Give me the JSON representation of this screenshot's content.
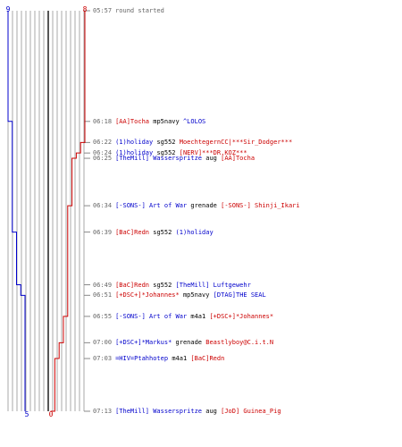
{
  "score_top": {
    "blue": "9",
    "red": "8"
  },
  "score_bottom": {
    "blue": "5",
    "red": "0"
  },
  "colors": {
    "blue": "#0000cc",
    "red": "#cc0000",
    "grid": "#aaaaaa",
    "axis": "#555555",
    "time": "#666666"
  },
  "events": [
    {
      "time": "05:57",
      "text": "round started"
    },
    {
      "time": "06:18",
      "killer": "[AA]Tocha",
      "killer_team": "red",
      "weapon": "mp5navy",
      "victim": "^LOLOS",
      "victim_team": "blue"
    },
    {
      "time": "06:22",
      "killer": "(1)holiday",
      "killer_team": "blue",
      "weapon": "sg552",
      "victim": "MoechtegernCC|***Sir_Dodger***",
      "victim_team": "red"
    },
    {
      "time": "06:24",
      "killer": "(1)holiday",
      "killer_team": "blue",
      "weapon": "sg552",
      "victim": "[NERV]***DR.KOZ***",
      "victim_team": "red"
    },
    {
      "time": "06:25",
      "killer": "[TheMill] Wasserspritze",
      "killer_team": "blue",
      "weapon": "aug",
      "victim": "[AA]Tocha",
      "victim_team": "red"
    },
    {
      "time": "06:34",
      "killer": "[-SONS-] Art of War",
      "killer_team": "blue",
      "weapon": "grenade",
      "victim": "[-SONS-] Shinji_Ikari",
      "victim_team": "red"
    },
    {
      "time": "06:39",
      "killer": "[BaC]Redn",
      "killer_team": "red",
      "weapon": "sg552",
      "victim": "(1)holiday",
      "victim_team": "blue"
    },
    {
      "time": "06:49",
      "killer": "[BaC]Redn",
      "killer_team": "red",
      "weapon": "sg552",
      "victim": "[TheMill] Luftgewehr",
      "victim_team": "blue"
    },
    {
      "time": "06:51",
      "killer": "[+DSC+]*Johannes*",
      "killer_team": "red",
      "weapon": "mp5navy",
      "victim": "[DTAG]THE SEAL",
      "victim_team": "blue"
    },
    {
      "time": "06:55",
      "killer": "[-SONS-] Art of War",
      "killer_team": "blue",
      "weapon": "m4a1",
      "victim": "[+DSC+]*Johannes*",
      "victim_team": "red"
    },
    {
      "time": "07:00",
      "killer": "[+DSC+]*Markus*",
      "killer_team": "blue",
      "weapon": "grenade",
      "victim": "Beastlyboy@C.i.t.N",
      "victim_team": "red"
    },
    {
      "time": "07:03",
      "killer": "=HIV=Ptahhotep",
      "killer_team": "blue",
      "weapon": "m4a1",
      "victim": "[BaC]Redn",
      "victim_team": "red"
    },
    {
      "time": "07:13",
      "killer": "[TheMill] Wasserspritze",
      "killer_team": "blue",
      "weapon": "aug",
      "victim": "[JoD] Guinea_Pig",
      "victim_team": "red"
    }
  ]
}
